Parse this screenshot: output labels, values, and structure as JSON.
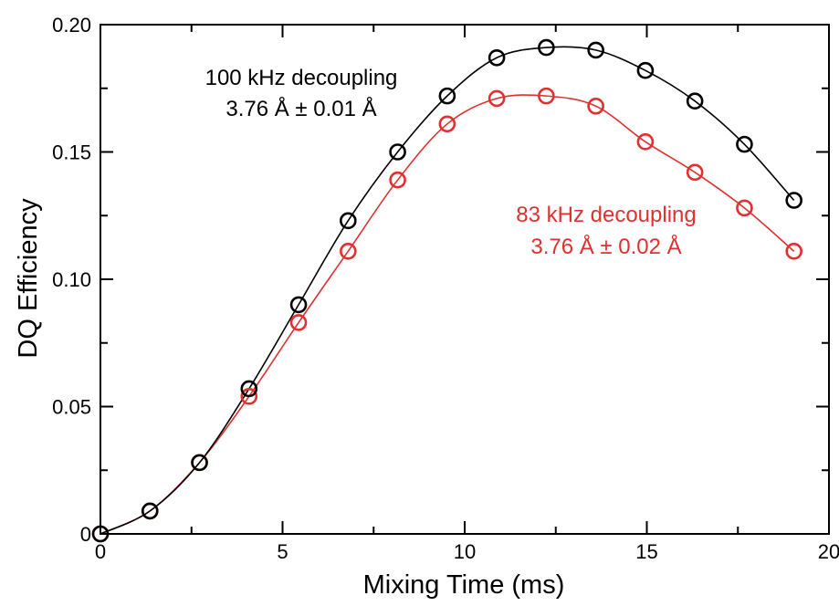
{
  "chart_data": {
    "type": "scatter",
    "title": "",
    "xlabel": "Mixing Time (ms)",
    "ylabel": "DQ Efficiency",
    "xlim": [
      0,
      20
    ],
    "ylim": [
      0,
      0.2
    ],
    "x_ticks": [
      0,
      5,
      10,
      15,
      20
    ],
    "x_tick_labels": [
      "0",
      "5",
      "10",
      "15",
      "20"
    ],
    "y_ticks": [
      0,
      0.05,
      0.1,
      0.15,
      0.2
    ],
    "y_tick_labels": [
      "0",
      "0.05",
      "0.10",
      "0.15",
      "0.20"
    ],
    "grid": false,
    "series": [
      {
        "color": "#000000",
        "marker": "open-circle",
        "with_fit_line": true,
        "points": [
          [
            0,
            0
          ],
          [
            1.36,
            0.009
          ],
          [
            2.72,
            0.028
          ],
          [
            4.08,
            0.057
          ],
          [
            5.44,
            0.09
          ],
          [
            6.8,
            0.123
          ],
          [
            8.16,
            0.15
          ],
          [
            9.52,
            0.172
          ],
          [
            10.88,
            0.187
          ],
          [
            12.24,
            0.191
          ],
          [
            13.6,
            0.19
          ],
          [
            14.96,
            0.182
          ],
          [
            16.32,
            0.17
          ],
          [
            17.68,
            0.153
          ],
          [
            19.04,
            0.131
          ]
        ]
      },
      {
        "color": "#e03030",
        "marker": "open-circle",
        "with_fit_line": true,
        "points": [
          [
            0,
            0
          ],
          [
            1.36,
            0.009
          ],
          [
            2.72,
            0.028
          ],
          [
            4.08,
            0.054
          ],
          [
            5.44,
            0.083
          ],
          [
            6.8,
            0.111
          ],
          [
            8.16,
            0.139
          ],
          [
            9.52,
            0.161
          ],
          [
            10.88,
            0.171
          ],
          [
            12.24,
            0.172
          ],
          [
            13.6,
            0.168
          ],
          [
            14.96,
            0.154
          ],
          [
            16.32,
            0.142
          ],
          [
            17.68,
            0.128
          ],
          [
            19.04,
            0.111
          ]
        ]
      }
    ],
    "annotations": [
      {
        "lines": [
          "100 kHz decoupling",
          "3.76 Å ± 0.01 Å"
        ],
        "color": "#000000",
        "series": 0
      },
      {
        "lines": [
          "83 kHz decoupling",
          "3.76 Å ± 0.02 Å"
        ],
        "color": "#e03030",
        "series": 1
      }
    ]
  }
}
